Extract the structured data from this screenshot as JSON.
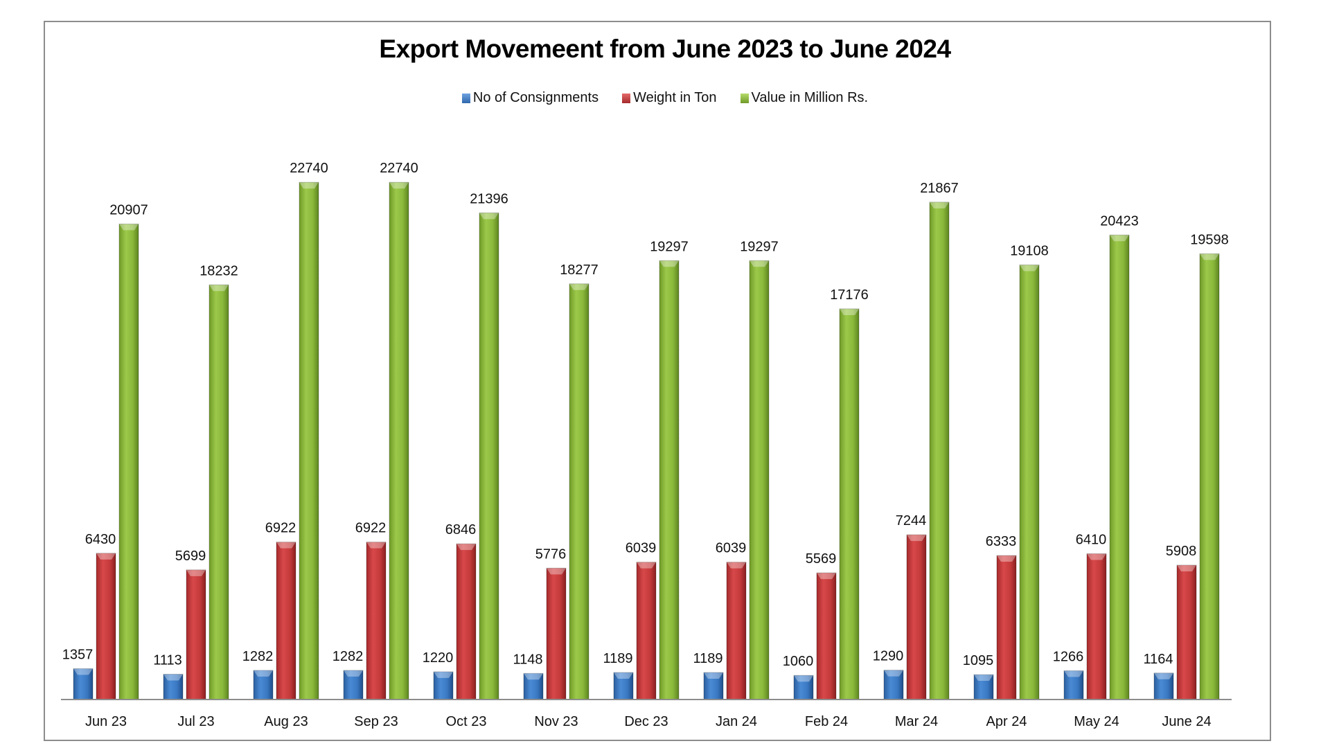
{
  "chart_data": {
    "type": "bar",
    "title": "Export Movemeent from June 2023 to June 2024",
    "xlabel": "",
    "ylabel": "",
    "ylim": [
      0,
      25000
    ],
    "grid": false,
    "legend_position": "top-center",
    "categories": [
      "Jun 23",
      "Jul 23",
      "Aug 23",
      "Sep 23",
      "Oct 23",
      "Nov 23",
      "Dec 23",
      "Jan 24",
      "Feb 24",
      "Mar 24",
      "Apr 24",
      "May 24",
      "June 24"
    ],
    "series": [
      {
        "name": "No of Consignments",
        "color": "#3f7fc8",
        "values": [
          1357,
          1113,
          1282,
          1282,
          1220,
          1148,
          1189,
          1189,
          1060,
          1290,
          1095,
          1266,
          1164
        ]
      },
      {
        "name": "Weight in Ton",
        "color": "#c8393a",
        "values": [
          6430,
          5699,
          6922,
          6922,
          6846,
          5776,
          6039,
          6039,
          5569,
          7244,
          6333,
          6410,
          5908
        ]
      },
      {
        "name": "Value in Million Rs.",
        "color": "#8fbe3c",
        "values": [
          20907,
          18232,
          22740,
          22740,
          21396,
          18277,
          19297,
          19297,
          17176,
          21867,
          19108,
          20423,
          19598
        ]
      }
    ]
  }
}
